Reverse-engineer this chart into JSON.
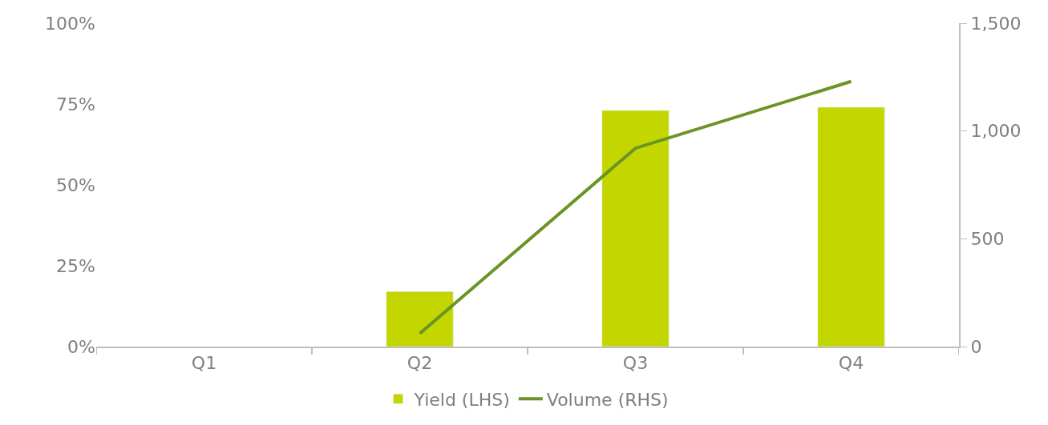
{
  "chart_data": {
    "type": "bar",
    "categories": [
      "Q1",
      "Q2",
      "Q3",
      "Q4"
    ],
    "series": [
      {
        "name": "Yield (LHS)",
        "color": "#c3d600",
        "values": [
          null,
          17,
          73,
          74
        ]
      },
      {
        "name": "Volume (RHS)",
        "type": "line",
        "axis": "y2",
        "color": "#6b9424",
        "values": [
          null,
          60,
          920,
          1230
        ]
      }
    ],
    "ylim": [
      0,
      100
    ],
    "yticks": [
      {
        "value": 0,
        "label": "0%"
      },
      {
        "value": 25,
        "label": "25%"
      },
      {
        "value": 50,
        "label": "50%"
      },
      {
        "value": 75,
        "label": "75%"
      },
      {
        "value": 100,
        "label": "100%"
      }
    ],
    "y2lim": [
      0,
      1500
    ],
    "y2ticks": [
      {
        "value": 0,
        "label": "0"
      },
      {
        "value": 500,
        "label": "500"
      },
      {
        "value": 1000,
        "label": "1,000"
      },
      {
        "value": 1500,
        "label": "1,500"
      }
    ],
    "legend": "bottom",
    "marker": "none",
    "line_style": "solid"
  }
}
